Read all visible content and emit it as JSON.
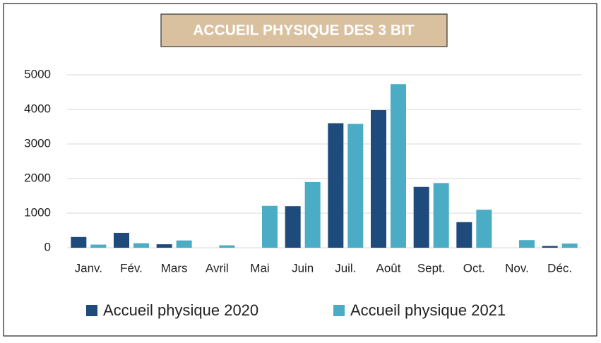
{
  "chart_data": {
    "type": "bar",
    "title": "ACCUEIL PHYSIQUE DES 3 BIT",
    "categories": [
      "Janv.",
      "Fév.",
      "Mars",
      "Avril",
      "Mai",
      "Juin",
      "Juil.",
      "Août",
      "Sept.",
      "Oct.",
      "Nov.",
      "Déc."
    ],
    "series": [
      {
        "name": "Accueil physique 2020",
        "color": "#1f4a7c",
        "values": [
          310,
          430,
          100,
          0,
          0,
          1200,
          3600,
          3980,
          1760,
          740,
          0,
          50
        ]
      },
      {
        "name": "Accueil physique 2021",
        "color": "#4bacc6",
        "values": [
          90,
          130,
          210,
          70,
          1210,
          1900,
          3580,
          4730,
          1870,
          1100,
          220,
          120
        ]
      }
    ],
    "ylim": [
      0,
      5000
    ],
    "yticks": [
      0,
      1000,
      2000,
      3000,
      4000,
      5000
    ],
    "grid": true,
    "legend": "bottom"
  }
}
